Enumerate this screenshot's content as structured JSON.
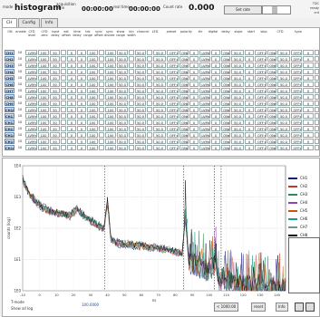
{
  "topbar": {
    "mode_label": "mode",
    "mode_value": "histogram",
    "acq_label": "acquisition time",
    "acq_value": "00:00:00",
    "real_label": "real time",
    "real_value": "00:00:00",
    "rate_label": "Count rate",
    "rate_value": "0.000",
    "button_label": "Set rate",
    "right_lines": [
      "TDC",
      "ready",
      "cnt"
    ]
  },
  "tabs": [
    "CH",
    "Config",
    "Info"
  ],
  "table": {
    "headers": [
      "ON",
      "enable",
      "CFD level",
      "CFD zero",
      "input delay",
      "ext offset",
      "time delay",
      "tdc range",
      "sync offset",
      "sync divider",
      "show range",
      "bin width",
      "channel",
      "LED",
      "preset",
      "polarity",
      "thr",
      "digital",
      "delay",
      "slope",
      "start",
      "stop",
      "CFD",
      "type"
    ],
    "rows": [
      {
        "ch": "CH1",
        "v": "10",
        "t": "LVM",
        "d": "100",
        "e": "50",
        "z": "0",
        "x": "0",
        "n": "100",
        "s": "50.0",
        "p": "ON",
        "q": "OFF"
      },
      {
        "ch": "CH2",
        "v": "10",
        "t": "LVM",
        "d": "100",
        "e": "50",
        "z": "0",
        "x": "0",
        "n": "100",
        "s": "50.0",
        "p": "ON",
        "q": "OFF"
      },
      {
        "ch": "CH3",
        "v": "10",
        "t": "LVM",
        "d": "100",
        "e": "50",
        "z": "0",
        "x": "0",
        "n": "100",
        "s": "50.0",
        "p": "ON",
        "q": "OFF"
      },
      {
        "ch": "CH4",
        "v": "10",
        "t": "LVM",
        "d": "100",
        "e": "50",
        "z": "0",
        "x": "0",
        "n": "100",
        "s": "50.0",
        "p": "ON",
        "q": "OFF"
      },
      {
        "ch": "CH5",
        "v": "10",
        "t": "LVM",
        "d": "100",
        "e": "50",
        "z": "0",
        "x": "0",
        "n": "100",
        "s": "50.0",
        "p": "ON",
        "q": "OFF"
      },
      {
        "ch": "CH6",
        "v": "10",
        "t": "LVM",
        "d": "100",
        "e": "50",
        "z": "0",
        "x": "0",
        "n": "100",
        "s": "50.0",
        "p": "ON",
        "q": "OFF"
      },
      {
        "ch": "CH7",
        "v": "10",
        "t": "LVM",
        "d": "100",
        "e": "50",
        "z": "0",
        "x": "0",
        "n": "100",
        "s": "50.0",
        "p": "ON",
        "q": "OFF"
      },
      {
        "ch": "CH8",
        "v": "10",
        "t": "LVM",
        "d": "100",
        "e": "50",
        "z": "0",
        "x": "0",
        "n": "100",
        "s": "50.0",
        "p": "ON",
        "q": "OFF"
      },
      {
        "ch": "CH9",
        "v": "10",
        "t": "LVM",
        "d": "100",
        "e": "50",
        "z": "0",
        "x": "0",
        "n": "100",
        "s": "50.0",
        "p": "ON",
        "q": "OFF"
      },
      {
        "ch": "CH10",
        "v": "10",
        "t": "LVM",
        "d": "100",
        "e": "50",
        "z": "0",
        "x": "0",
        "n": "100",
        "s": "50.0",
        "p": "ON",
        "q": "OFF"
      },
      {
        "ch": "CH11",
        "v": "10",
        "t": "LVM",
        "d": "100",
        "e": "50",
        "z": "0",
        "x": "0",
        "n": "100",
        "s": "50.0",
        "p": "ON",
        "q": "OFF"
      },
      {
        "ch": "CH12",
        "v": "10",
        "t": "LVM",
        "d": "100",
        "e": "50",
        "z": "0",
        "x": "0",
        "n": "100",
        "s": "50.0",
        "p": "ON",
        "q": "OFF"
      },
      {
        "ch": "CH13",
        "v": "10",
        "t": "LVM",
        "d": "100",
        "e": "50",
        "z": "0",
        "x": "0",
        "n": "100",
        "s": "50.0",
        "p": "ON",
        "q": "OFF"
      },
      {
        "ch": "CH14",
        "v": "10",
        "t": "LVM",
        "d": "100",
        "e": "50",
        "z": "0",
        "x": "0",
        "n": "100",
        "s": "50.0",
        "p": "ON",
        "q": "OFF"
      },
      {
        "ch": "CH15",
        "v": "10",
        "t": "LVM",
        "d": "100",
        "e": "50",
        "z": "0",
        "x": "0",
        "n": "100",
        "s": "50.0",
        "p": "ON",
        "q": "OFF"
      },
      {
        "ch": "CH16",
        "v": "10",
        "t": "LVM",
        "d": "100",
        "e": "50",
        "z": "0",
        "x": "0",
        "n": "100",
        "s": "50.0",
        "p": "ON",
        "q": "OFF"
      }
    ]
  },
  "chart_data": {
    "type": "line",
    "title": "",
    "xlabel": "ns",
    "ylabel": "counts (log)",
    "yticks": [
      "1E4",
      "1E3",
      "1E2",
      "1E1",
      "1E0"
    ],
    "xticks": [
      "-10",
      "0",
      "10",
      "20",
      "30",
      "40",
      "50",
      "60",
      "70",
      "80",
      "90",
      "100",
      "110",
      "120",
      "130",
      "140"
    ],
    "xlim": [
      -10,
      145
    ],
    "ylim": [
      0,
      4
    ],
    "series": [
      {
        "name": "CH1",
        "color": "#1a1a7a"
      },
      {
        "name": "CH2",
        "color": "#c0392b"
      },
      {
        "name": "CH3",
        "color": "#2e8b57"
      },
      {
        "name": "CH4",
        "color": "#8e44ad"
      },
      {
        "name": "CH5",
        "color": "#d35400"
      },
      {
        "name": "CH6",
        "color": "#16a085"
      },
      {
        "name": "CH7",
        "color": "#7f8c8d"
      },
      {
        "name": "CH8",
        "color": "#000000"
      }
    ],
    "profile": {
      "x": [
        -10,
        -6,
        -2,
        2,
        6,
        10,
        14,
        18,
        22,
        26,
        30,
        34,
        38,
        40,
        42,
        44,
        48,
        52,
        56,
        60,
        64,
        68,
        72,
        76,
        80,
        84,
        86,
        88,
        92,
        96,
        100,
        104,
        106,
        108,
        112,
        116,
        120,
        124,
        128,
        132,
        136,
        140,
        144
      ],
      "y": [
        3.55,
        3.1,
        2.85,
        2.65,
        2.55,
        2.5,
        2.45,
        2.4,
        2.6,
        2.4,
        2.25,
        2.1,
        2.0,
        2.85,
        1.7,
        1.55,
        1.5,
        1.5,
        1.45,
        1.45,
        1.4,
        1.4,
        1.35,
        1.3,
        1.25,
        1.2,
        2.35,
        0.9,
        0.8,
        0.7,
        0.6,
        0.9,
        0.3,
        0.4,
        0.3,
        0.2,
        0.15,
        0.1,
        0.08,
        0.05,
        0.05,
        0.05,
        0.05
      ]
    },
    "markers": [
      38.5,
      85,
      103,
      107
    ]
  },
  "legend": {
    "entries": [
      "CH1",
      "CH2",
      "CH3",
      "CH4",
      "CH5",
      "CH6",
      "CH7",
      "CH8"
    ]
  },
  "bottom": {
    "status_line1": "T-mode",
    "status_line2": "Show all log",
    "mid_text": "100.0000",
    "btn1": "< 1000.00",
    "btn2": "reset",
    "btn3": "Info"
  }
}
